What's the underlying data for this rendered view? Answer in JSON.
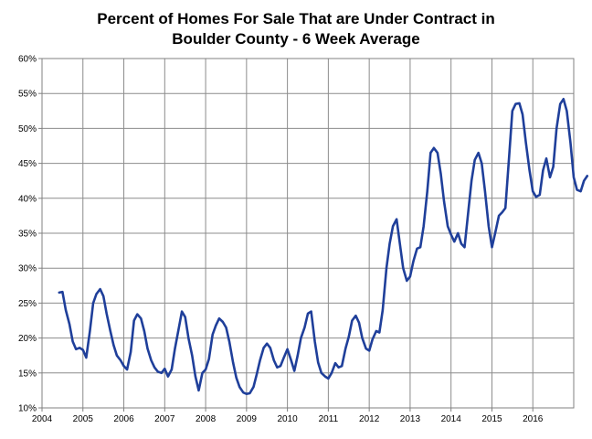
{
  "chart_data": {
    "type": "line",
    "title_lines": [
      "Percent of Homes For Sale That are Under Contract  in",
      "Boulder County - 6 Week Average"
    ],
    "xlabel": "",
    "ylabel": "",
    "xlim": [
      2004,
      2017
    ],
    "ylim": [
      10,
      60
    ],
    "x_ticks": [
      {
        "value": 2004,
        "label": "2004"
      },
      {
        "value": 2005,
        "label": "2005"
      },
      {
        "value": 2006,
        "label": "2006"
      },
      {
        "value": 2007,
        "label": "2007"
      },
      {
        "value": 2008,
        "label": "2008"
      },
      {
        "value": 2009,
        "label": "2009"
      },
      {
        "value": 2010,
        "label": "2010"
      },
      {
        "value": 2011,
        "label": "2011"
      },
      {
        "value": 2012,
        "label": "2012"
      },
      {
        "value": 2013,
        "label": "2013"
      },
      {
        "value": 2014,
        "label": "2014"
      },
      {
        "value": 2015,
        "label": "2015"
      },
      {
        "value": 2016,
        "label": "2016"
      }
    ],
    "y_ticks": [
      {
        "value": 10,
        "label": "10%"
      },
      {
        "value": 15,
        "label": "15%"
      },
      {
        "value": 20,
        "label": "20%"
      },
      {
        "value": 25,
        "label": "25%"
      },
      {
        "value": 30,
        "label": "30%"
      },
      {
        "value": 35,
        "label": "35%"
      },
      {
        "value": 40,
        "label": "40%"
      },
      {
        "value": 45,
        "label": "45%"
      },
      {
        "value": 50,
        "label": "50%"
      },
      {
        "value": 55,
        "label": "55%"
      },
      {
        "value": 60,
        "label": "60%"
      }
    ],
    "grid": true,
    "line_color": "#1f3f9a",
    "series": [
      {
        "points": [
          [
            2004.42,
            26.5
          ],
          [
            2004.5,
            26.6
          ],
          [
            2004.58,
            24.0
          ],
          [
            2004.67,
            22.0
          ],
          [
            2004.75,
            19.5
          ],
          [
            2004.83,
            18.4
          ],
          [
            2004.92,
            18.6
          ],
          [
            2005.0,
            18.3
          ],
          [
            2005.08,
            17.2
          ],
          [
            2005.17,
            21.0
          ],
          [
            2005.25,
            25.0
          ],
          [
            2005.33,
            26.3
          ],
          [
            2005.42,
            27.0
          ],
          [
            2005.5,
            26.0
          ],
          [
            2005.58,
            23.5
          ],
          [
            2005.67,
            21.0
          ],
          [
            2005.75,
            19.0
          ],
          [
            2005.83,
            17.5
          ],
          [
            2005.92,
            16.8
          ],
          [
            2006.0,
            16.0
          ],
          [
            2006.08,
            15.5
          ],
          [
            2006.17,
            18.0
          ],
          [
            2006.25,
            22.5
          ],
          [
            2006.33,
            23.4
          ],
          [
            2006.42,
            22.8
          ],
          [
            2006.5,
            21.0
          ],
          [
            2006.58,
            18.5
          ],
          [
            2006.67,
            16.8
          ],
          [
            2006.75,
            15.8
          ],
          [
            2006.83,
            15.2
          ],
          [
            2006.92,
            15.0
          ],
          [
            2007.0,
            15.6
          ],
          [
            2007.08,
            14.5
          ],
          [
            2007.17,
            15.5
          ],
          [
            2007.25,
            18.5
          ],
          [
            2007.33,
            21.0
          ],
          [
            2007.42,
            23.8
          ],
          [
            2007.5,
            23.0
          ],
          [
            2007.58,
            20.0
          ],
          [
            2007.67,
            17.5
          ],
          [
            2007.75,
            14.5
          ],
          [
            2007.83,
            12.5
          ],
          [
            2007.92,
            15.0
          ],
          [
            2008.0,
            15.5
          ],
          [
            2008.08,
            17.0
          ],
          [
            2008.17,
            20.5
          ],
          [
            2008.25,
            21.8
          ],
          [
            2008.33,
            22.8
          ],
          [
            2008.42,
            22.3
          ],
          [
            2008.5,
            21.5
          ],
          [
            2008.58,
            19.5
          ],
          [
            2008.67,
            16.5
          ],
          [
            2008.75,
            14.3
          ],
          [
            2008.83,
            13.0
          ],
          [
            2008.92,
            12.2
          ],
          [
            2009.0,
            12.0
          ],
          [
            2009.08,
            12.1
          ],
          [
            2009.17,
            13.0
          ],
          [
            2009.25,
            14.8
          ],
          [
            2009.33,
            16.8
          ],
          [
            2009.42,
            18.6
          ],
          [
            2009.5,
            19.2
          ],
          [
            2009.58,
            18.6
          ],
          [
            2009.67,
            16.8
          ],
          [
            2009.75,
            15.8
          ],
          [
            2009.83,
            16.0
          ],
          [
            2009.92,
            17.3
          ],
          [
            2010.0,
            18.4
          ],
          [
            2010.08,
            17.0
          ],
          [
            2010.17,
            15.3
          ],
          [
            2010.25,
            17.5
          ],
          [
            2010.33,
            20.0
          ],
          [
            2010.42,
            21.5
          ],
          [
            2010.5,
            23.5
          ],
          [
            2010.58,
            23.8
          ],
          [
            2010.67,
            19.5
          ],
          [
            2010.75,
            16.5
          ],
          [
            2010.83,
            15.0
          ],
          [
            2010.92,
            14.5
          ],
          [
            2011.0,
            14.2
          ],
          [
            2011.08,
            15.0
          ],
          [
            2011.17,
            16.4
          ],
          [
            2011.25,
            15.8
          ],
          [
            2011.33,
            16.0
          ],
          [
            2011.42,
            18.5
          ],
          [
            2011.5,
            20.2
          ],
          [
            2011.58,
            22.5
          ],
          [
            2011.67,
            23.2
          ],
          [
            2011.75,
            22.2
          ],
          [
            2011.83,
            20.0
          ],
          [
            2011.92,
            18.5
          ],
          [
            2012.0,
            18.2
          ],
          [
            2012.08,
            19.8
          ],
          [
            2012.17,
            21.0
          ],
          [
            2012.25,
            20.8
          ],
          [
            2012.33,
            24.0
          ],
          [
            2012.42,
            30.0
          ],
          [
            2012.5,
            33.5
          ],
          [
            2012.58,
            36.0
          ],
          [
            2012.67,
            37.0
          ],
          [
            2012.75,
            33.5
          ],
          [
            2012.83,
            30.0
          ],
          [
            2012.92,
            28.2
          ],
          [
            2013.0,
            28.8
          ],
          [
            2013.08,
            31.0
          ],
          [
            2013.17,
            32.8
          ],
          [
            2013.25,
            33.0
          ],
          [
            2013.33,
            36.0
          ],
          [
            2013.42,
            41.0
          ],
          [
            2013.5,
            46.5
          ],
          [
            2013.58,
            47.2
          ],
          [
            2013.67,
            46.5
          ],
          [
            2013.75,
            43.5
          ],
          [
            2013.83,
            39.5
          ],
          [
            2013.92,
            36.0
          ],
          [
            2014.0,
            34.8
          ],
          [
            2014.08,
            33.8
          ],
          [
            2014.17,
            35.0
          ],
          [
            2014.25,
            33.5
          ],
          [
            2014.33,
            33.0
          ],
          [
            2014.42,
            38.0
          ],
          [
            2014.5,
            42.5
          ],
          [
            2014.58,
            45.5
          ],
          [
            2014.67,
            46.5
          ],
          [
            2014.75,
            45.0
          ],
          [
            2014.83,
            41.0
          ],
          [
            2014.92,
            36.0
          ],
          [
            2015.0,
            33.0
          ],
          [
            2015.08,
            35.0
          ],
          [
            2015.17,
            37.5
          ],
          [
            2015.25,
            38.0
          ],
          [
            2015.33,
            38.6
          ],
          [
            2015.42,
            46.0
          ],
          [
            2015.5,
            52.5
          ],
          [
            2015.58,
            53.5
          ],
          [
            2015.67,
            53.6
          ],
          [
            2015.75,
            52.0
          ],
          [
            2015.83,
            48.0
          ],
          [
            2015.92,
            44.0
          ],
          [
            2016.0,
            41.0
          ],
          [
            2016.08,
            40.2
          ],
          [
            2016.17,
            40.5
          ],
          [
            2016.25,
            44.0
          ],
          [
            2016.33,
            45.7
          ],
          [
            2016.42,
            43.0
          ],
          [
            2016.5,
            44.5
          ],
          [
            2016.58,
            50.0
          ],
          [
            2016.67,
            53.5
          ],
          [
            2016.75,
            54.2
          ],
          [
            2016.83,
            52.5
          ],
          [
            2016.92,
            48.0
          ],
          [
            2017.0,
            43.0
          ],
          [
            2017.08,
            41.2
          ],
          [
            2017.17,
            41.0
          ],
          [
            2017.25,
            42.5
          ],
          [
            2017.33,
            43.2
          ]
        ]
      }
    ]
  }
}
